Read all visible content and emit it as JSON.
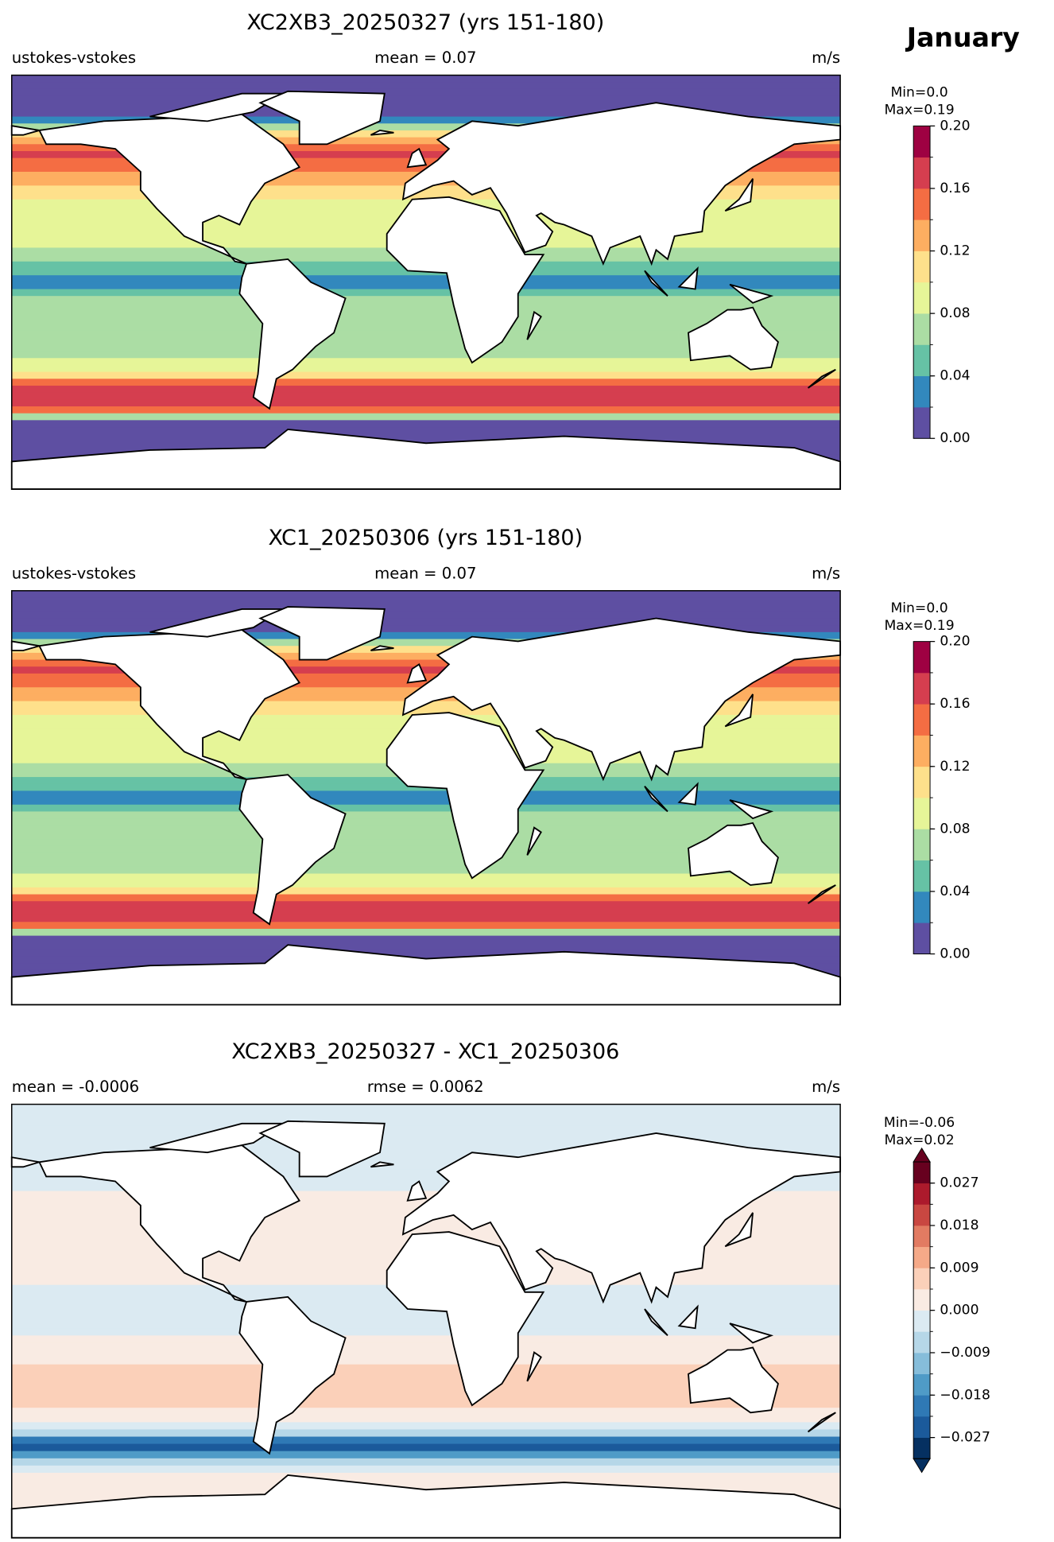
{
  "figure": {
    "month": "January",
    "panels": [
      {
        "title": "XC2XB3_20250327 (yrs 151-180)",
        "left": "ustokes-vstokes",
        "center": "mean = 0.07",
        "right": "m/s",
        "min_text": "Min=0.0",
        "max_text": "Max=0.19",
        "colorbar": {
          "lim": [
            0,
            0.2
          ],
          "ticks": [
            {
              "value": 0,
              "label": "0.00"
            },
            0.04,
            0.08,
            0.12,
            0.16,
            {
              "value": 0.2,
              "label": "0.20"
            }
          ],
          "colors": [
            "#5e4fa2",
            "#3288bd",
            "#66c2a5",
            "#abdda4",
            "#e6f598",
            "#fee08b",
            "#fdae61",
            "#f46d43",
            "#d53e4f",
            "#9e0142"
          ]
        }
      },
      {
        "title": "XC1_20250306 (yrs 151-180)",
        "left": "ustokes-vstokes",
        "center": "mean = 0.07",
        "right": "m/s",
        "min_text": "Min=0.0",
        "max_text": "Max=0.19",
        "colorbar": {
          "lim": [
            0,
            0.2
          ],
          "ticks": [
            {
              "value": 0,
              "label": "0.00"
            },
            0.04,
            0.08,
            0.12,
            0.16,
            {
              "value": 0.2,
              "label": "0.20"
            }
          ],
          "colors": [
            "#5e4fa2",
            "#3288bd",
            "#66c2a5",
            "#abdda4",
            "#e6f598",
            "#fee08b",
            "#fdae61",
            "#f46d43",
            "#d53e4f",
            "#9e0142"
          ]
        }
      },
      {
        "title": "XC2XB3_20250327 - XC1_20250306",
        "left": "mean = -0.0006",
        "center": "rmse = 0.0062",
        "right": "m/s",
        "min_text": "Min=-0.06",
        "max_text": "Max=0.02",
        "colorbar": {
          "lim": [
            -0.0315,
            0.0315
          ],
          "extend": "both",
          "ticks": [
            {
              "value": -0.027,
              "label": "−0.027"
            },
            {
              "value": -0.018,
              "label": "−0.018"
            },
            {
              "value": -0.009,
              "label": "−0.009"
            },
            {
              "value": 0,
              "label": "0.000"
            },
            0.009,
            0.018,
            0.027
          ],
          "colors": [
            "#053061",
            "#1b5a9b",
            "#2f79b5",
            "#4f9bc7",
            "#86bdda",
            "#b6d7e8",
            "#dbeaf2",
            "#f9ebe3",
            "#fbd0b9",
            "#f5a988",
            "#e27b62",
            "#c94741",
            "#ac1a2c",
            "#67001f"
          ]
        }
      }
    ]
  }
}
